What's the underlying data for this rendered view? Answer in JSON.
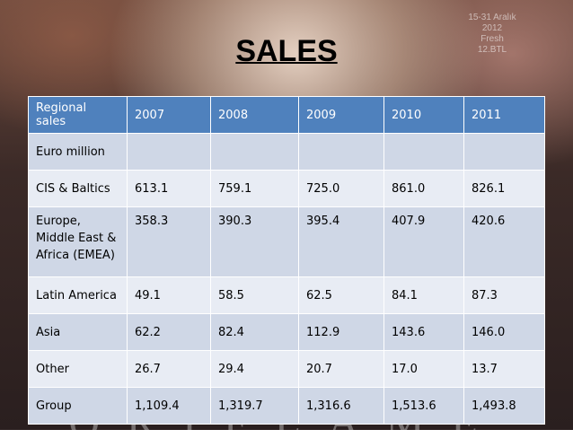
{
  "slide": {
    "title": "SALES",
    "watermark": "ORIFLAME",
    "corner_text": [
      "15-31 Aralık",
      "2012",
      "Fresh",
      "12.BTL"
    ]
  },
  "table": {
    "headers": [
      "Regional sales",
      "2007",
      "2008",
      "2009",
      "2010",
      "2011"
    ],
    "rows": [
      [
        "Euro million",
        "",
        "",
        "",
        "",
        ""
      ],
      [
        "CIS & Baltics",
        "613.1",
        "759.1",
        "725.0",
        "861.0",
        "826.1"
      ],
      [
        "Europe, Middle East & Africa (EMEA)",
        "358.3",
        "390.3",
        "395.4",
        "407.9",
        "420.6"
      ],
      [
        "Latin America",
        "49.1",
        "58.5",
        "62.5",
        "84.1",
        "87.3"
      ],
      [
        "Asia",
        "62.2",
        "82.4",
        "112.9",
        "143.6",
        "146.0"
      ],
      [
        "Other",
        "26.7",
        "29.4",
        "20.7",
        "17.0",
        "13.7"
      ],
      [
        "Group",
        "1,109.4",
        "1,319.7",
        "1,316.6",
        "1,513.6",
        "1,493.8"
      ]
    ]
  },
  "colors": {
    "header_bg": "#4f81bd",
    "row_odd": "#cfd7e6",
    "row_even": "#e8ecf4"
  }
}
